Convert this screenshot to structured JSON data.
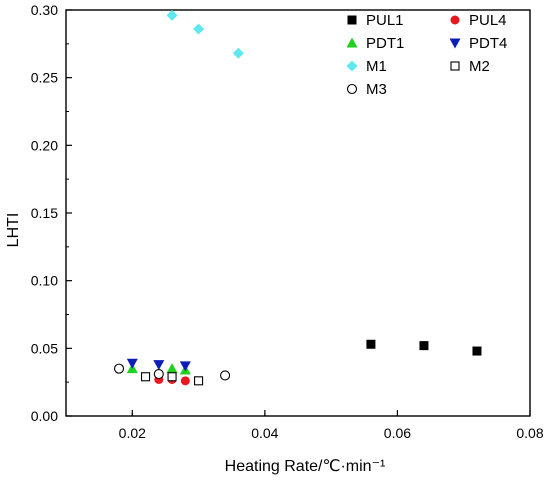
{
  "chart_data": {
    "type": "scatter",
    "title": "",
    "xlabel": "Heating Rate/℃·min⁻¹",
    "ylabel": "LHTI",
    "xlim": [
      0.01,
      0.08
    ],
    "ylim": [
      0.0,
      0.3
    ],
    "x_ticks": [
      "0.02",
      "0.04",
      "0.06",
      "0.08"
    ],
    "y_ticks": [
      "0.00",
      "0.05",
      "0.10",
      "0.15",
      "0.20",
      "0.25",
      "0.30"
    ],
    "grid": false,
    "legend_position": "top-right",
    "series": [
      {
        "name": "PUL1",
        "marker": "filled-square",
        "color": "#000000",
        "points": [
          [
            0.056,
            0.053
          ],
          [
            0.064,
            0.052
          ],
          [
            0.072,
            0.048
          ]
        ]
      },
      {
        "name": "PUL4",
        "marker": "filled-circle",
        "color": "#e8191f",
        "points": [
          [
            0.024,
            0.027
          ],
          [
            0.026,
            0.027
          ],
          [
            0.028,
            0.026
          ]
        ]
      },
      {
        "name": "PDT1",
        "marker": "triangle-up",
        "color": "#1fd21f",
        "points": [
          [
            0.02,
            0.035
          ],
          [
            0.026,
            0.035
          ],
          [
            0.028,
            0.034
          ]
        ]
      },
      {
        "name": "PDT4",
        "marker": "triangle-down",
        "color": "#0b1fb8",
        "points": [
          [
            0.02,
            0.039
          ],
          [
            0.024,
            0.038
          ],
          [
            0.028,
            0.037
          ]
        ]
      },
      {
        "name": "M1",
        "marker": "diamond",
        "color": "#5ee8f2",
        "points": [
          [
            0.026,
            0.296
          ],
          [
            0.03,
            0.286
          ],
          [
            0.036,
            0.268
          ]
        ]
      },
      {
        "name": "M2",
        "marker": "open-square",
        "color": "#000000",
        "points": [
          [
            0.022,
            0.029
          ],
          [
            0.026,
            0.029
          ],
          [
            0.03,
            0.026
          ]
        ]
      },
      {
        "name": "M3",
        "marker": "open-circle",
        "color": "#000000",
        "points": [
          [
            0.018,
            0.035
          ],
          [
            0.024,
            0.031
          ],
          [
            0.034,
            0.03
          ]
        ]
      }
    ]
  }
}
